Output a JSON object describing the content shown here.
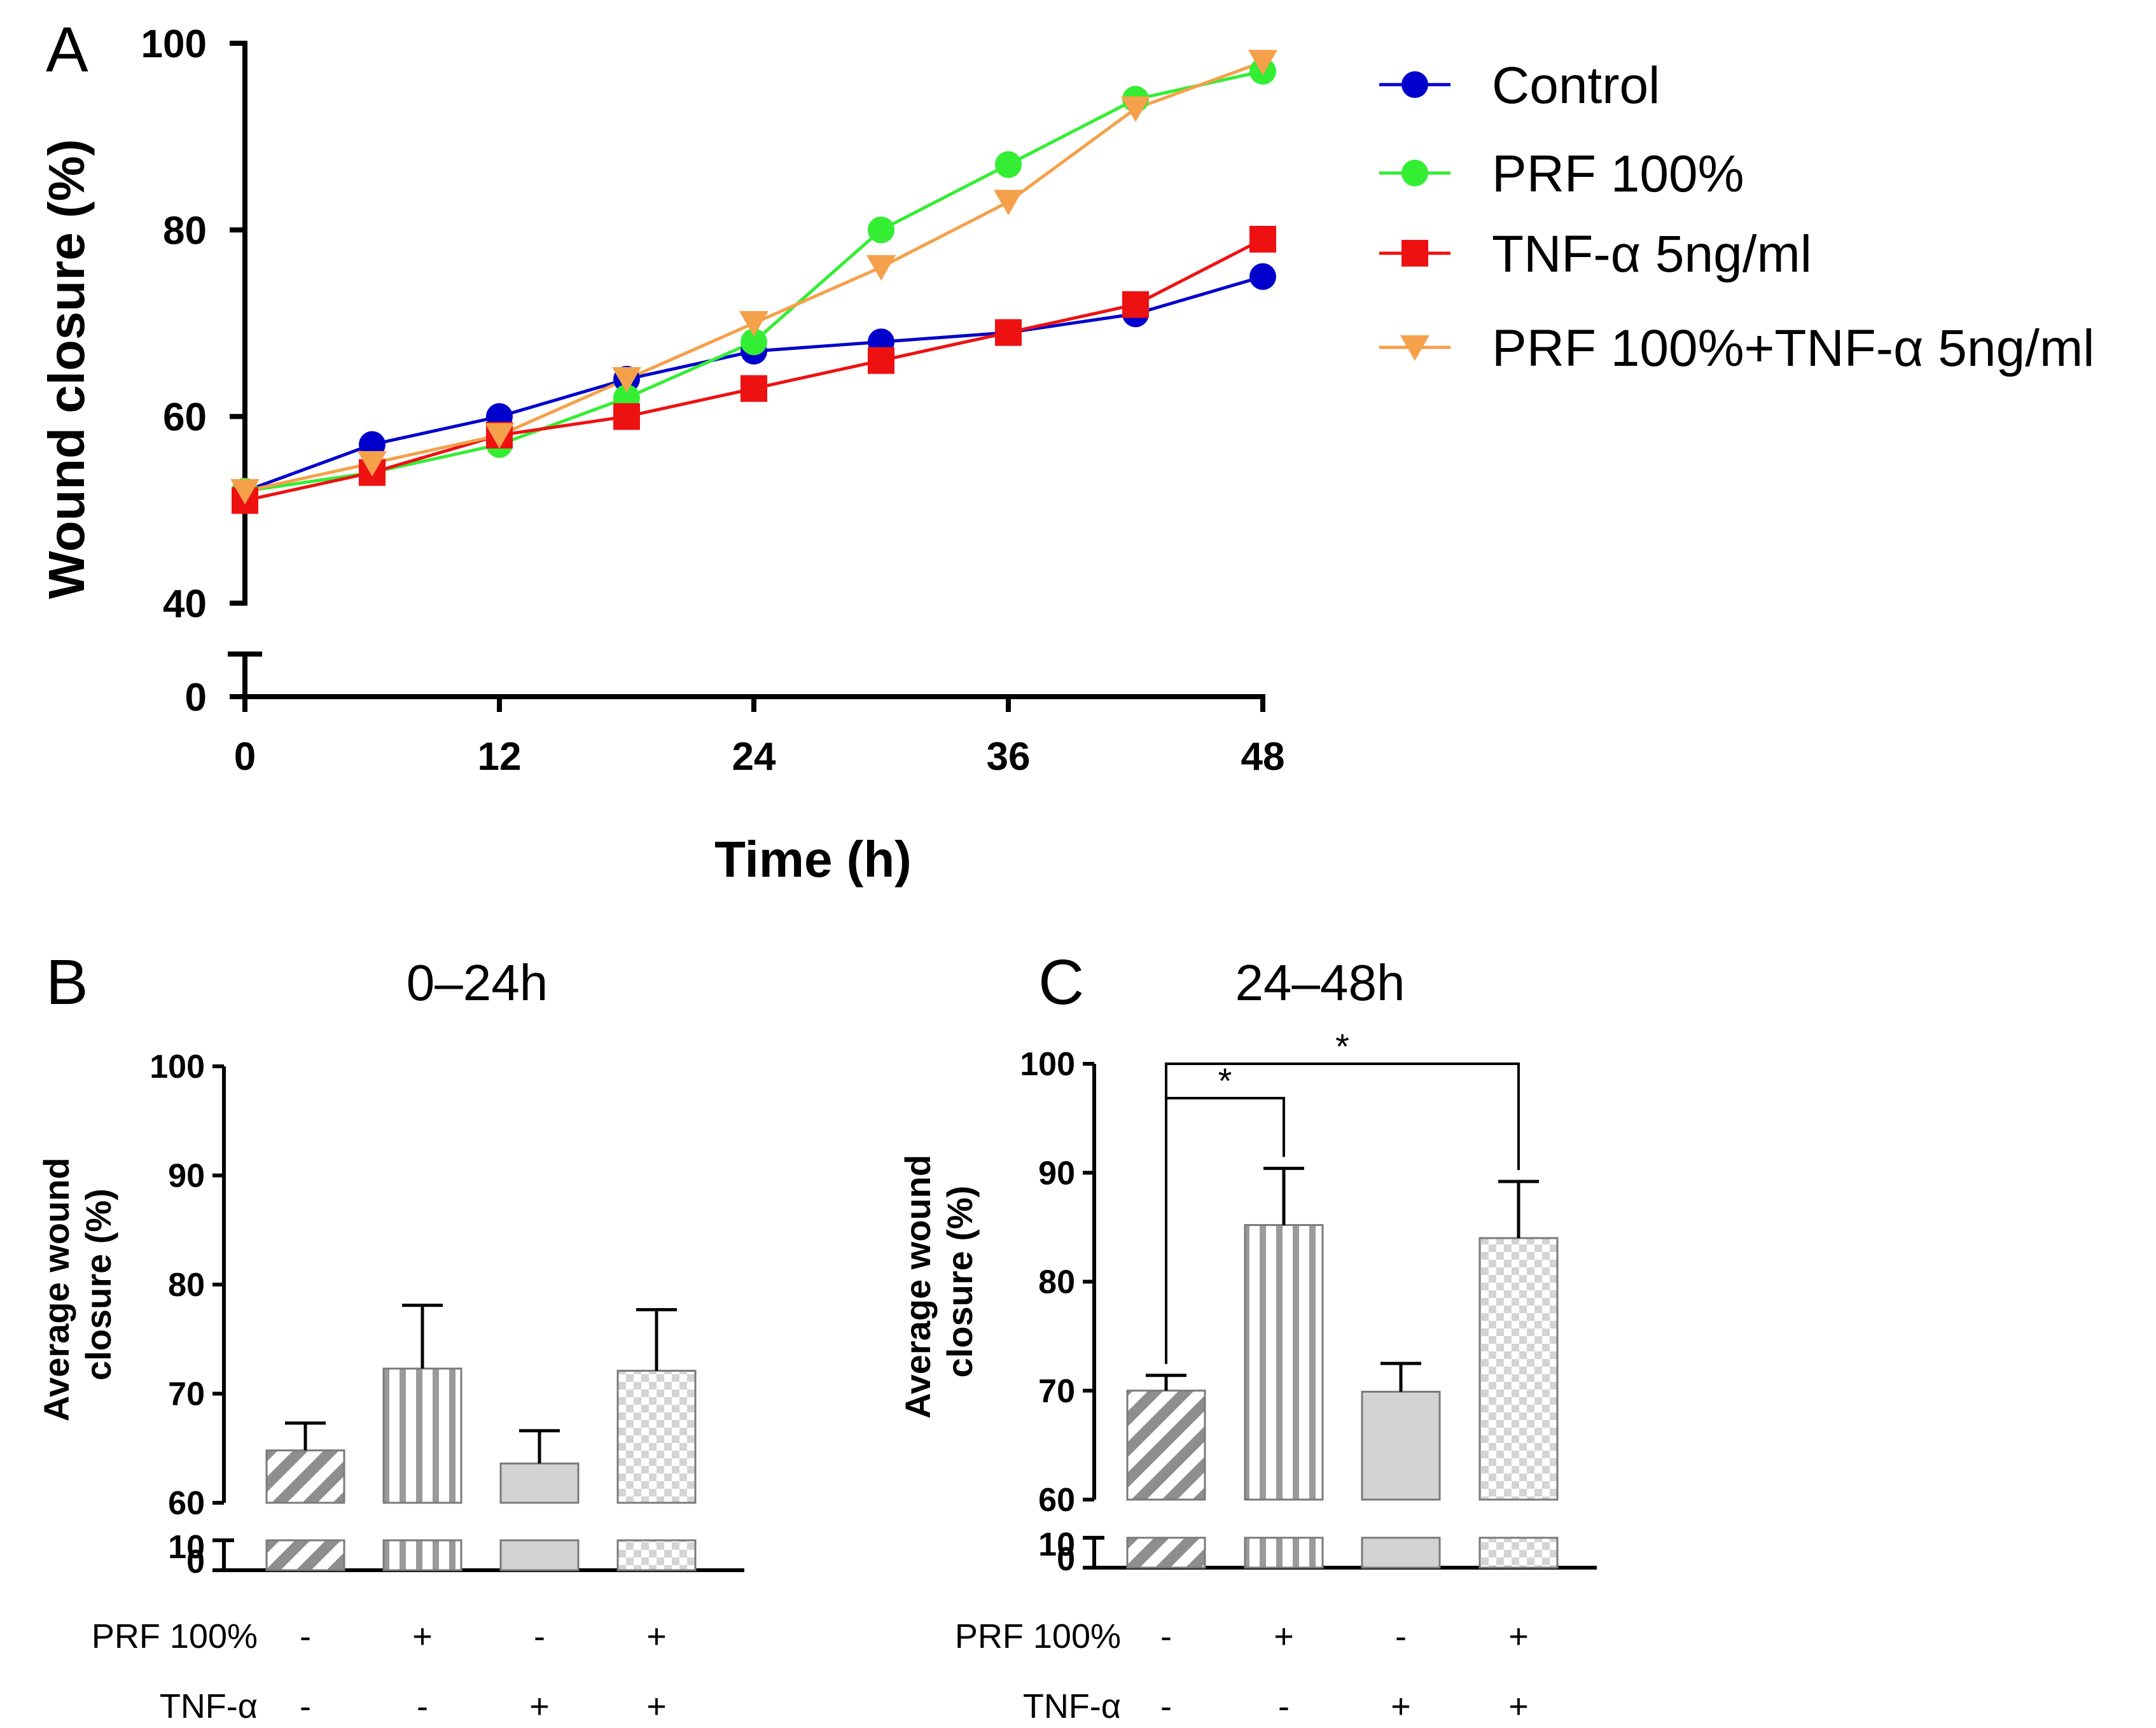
{
  "chart_data": [
    {
      "panel": "A",
      "type": "line",
      "title": "",
      "xlabel": "Time (h)",
      "ylabel": "Wound closure (%)",
      "x_ticks": [
        "0",
        "12",
        "24",
        "36",
        "48"
      ],
      "y_ticks": [
        "0",
        "40",
        "60",
        "80",
        "100"
      ],
      "xlim": [
        0,
        48
      ],
      "ylim_upper": [
        40,
        100
      ],
      "ylim_lower": [
        0,
        0
      ],
      "legend_position": "right",
      "x": [
        0,
        6,
        12,
        18,
        24,
        30,
        36,
        42,
        48
      ],
      "series": [
        {
          "name": "Control",
          "color": "#0000cc",
          "marker": "circle",
          "values": [
            52,
            57,
            60,
            64,
            67,
            68,
            69,
            71,
            75
          ]
        },
        {
          "name": "PRF 100%",
          "color": "#33ee33",
          "marker": "circle",
          "values": [
            52,
            54,
            57,
            62,
            68,
            80,
            87,
            94,
            97
          ]
        },
        {
          "name": "TNF-α 5ng/ml",
          "color": "#ee1111",
          "marker": "square",
          "values": [
            51,
            54,
            58,
            60,
            63,
            66,
            69,
            72,
            79
          ]
        },
        {
          "name": "PRF 100%+TNF-α 5ng/ml",
          "color": "#f5a04a",
          "marker": "triangle-down",
          "values": [
            52,
            55,
            58,
            64,
            70,
            76,
            83,
            93,
            98
          ]
        }
      ]
    },
    {
      "panel": "B",
      "type": "bar",
      "title": "0–24h",
      "ylabel": "Average wound closure (%)",
      "y_ticks": [
        "0",
        "10",
        "60",
        "70",
        "80",
        "90",
        "100"
      ],
      "ylim_upper": [
        60,
        100
      ],
      "ylim_lower": [
        0,
        10
      ],
      "categories": [
        "Control",
        "PRF 100%",
        "TNF-α",
        "PRF 100%+TNF-α"
      ],
      "values": [
        64.8,
        72.3,
        63.6,
        72.1
      ],
      "errors": [
        2.5,
        5.8,
        3.0,
        5.6
      ],
      "patterns": [
        "diagonal",
        "vertical",
        "solid",
        "checker"
      ],
      "conditions": [
        {
          "label": "PRF 100%",
          "signs": [
            "-",
            "+",
            "-",
            "+"
          ]
        },
        {
          "label": "TNF-α",
          "signs": [
            "-",
            "-",
            "+",
            "+"
          ]
        }
      ],
      "significance": []
    },
    {
      "panel": "C",
      "type": "bar",
      "title": "24–48h",
      "ylabel": "Average wound closure (%)",
      "y_ticks": [
        "0",
        "10",
        "60",
        "70",
        "80",
        "90",
        "100"
      ],
      "ylim_upper": [
        60,
        100
      ],
      "ylim_lower": [
        0,
        10
      ],
      "categories": [
        "Control",
        "PRF 100%",
        "TNF-α",
        "PRF 100%+TNF-α"
      ],
      "values": [
        70.0,
        85.2,
        69.9,
        84.0
      ],
      "errors": [
        1.4,
        5.2,
        2.6,
        5.2
      ],
      "patterns": [
        "diagonal",
        "vertical",
        "solid",
        "checker"
      ],
      "conditions": [
        {
          "label": "PRF 100%",
          "signs": [
            "-",
            "+",
            "-",
            "+"
          ]
        },
        {
          "label": "TNF-α",
          "signs": [
            "-",
            "-",
            "+",
            "+"
          ]
        }
      ],
      "significance": [
        {
          "from": 0,
          "to": 1,
          "label": "*"
        },
        {
          "from": 0,
          "to": 3,
          "label": "*"
        }
      ]
    }
  ]
}
